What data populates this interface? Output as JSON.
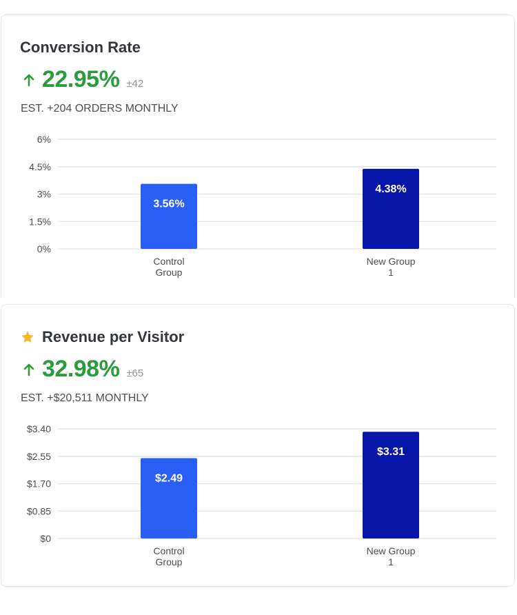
{
  "colors": {
    "control_bar": "#2a5ff5",
    "variant_bar": "#0515a8",
    "positive": "#2c9b3d",
    "star": "#f2b52b",
    "grid": "#e4e5e9"
  },
  "cards": [
    {
      "title": "Conversion Rate",
      "starred": false,
      "lift": "22.95%",
      "lift_direction": "up",
      "margin": "±42",
      "estimate": "EST. +204 ORDERS MONTHLY"
    },
    {
      "title": "Revenue per Visitor",
      "starred": true,
      "star_icon": "star-icon",
      "lift": "32.98%",
      "lift_direction": "up",
      "margin": "±65",
      "estimate": "EST. +$20,511 MONTHLY"
    }
  ],
  "chart_data": [
    {
      "type": "bar",
      "title": "Conversion Rate",
      "categories": [
        [
          "Control",
          "Group"
        ],
        [
          "New Group",
          "1"
        ]
      ],
      "values": [
        3.56,
        4.38
      ],
      "value_labels": [
        "3.56%",
        "4.38%"
      ],
      "ylim": [
        0,
        6
      ],
      "yticks": [
        0,
        1.5,
        3,
        4.5,
        6
      ],
      "ytick_labels": [
        "0%",
        "1.5%",
        "3%",
        "4.5%",
        "6%"
      ],
      "grid": true,
      "legend": "none"
    },
    {
      "type": "bar",
      "title": "Revenue per Visitor",
      "categories": [
        [
          "Control",
          "Group"
        ],
        [
          "New Group",
          "1"
        ]
      ],
      "values": [
        2.49,
        3.31
      ],
      "value_labels": [
        "$2.49",
        "$3.31"
      ],
      "ylim": [
        0,
        3.4
      ],
      "yticks": [
        0,
        0.85,
        1.7,
        2.55,
        3.4
      ],
      "ytick_labels": [
        "$0",
        "$0.85",
        "$1.70",
        "$2.55",
        "$3.40"
      ],
      "grid": true,
      "legend": "none"
    }
  ]
}
